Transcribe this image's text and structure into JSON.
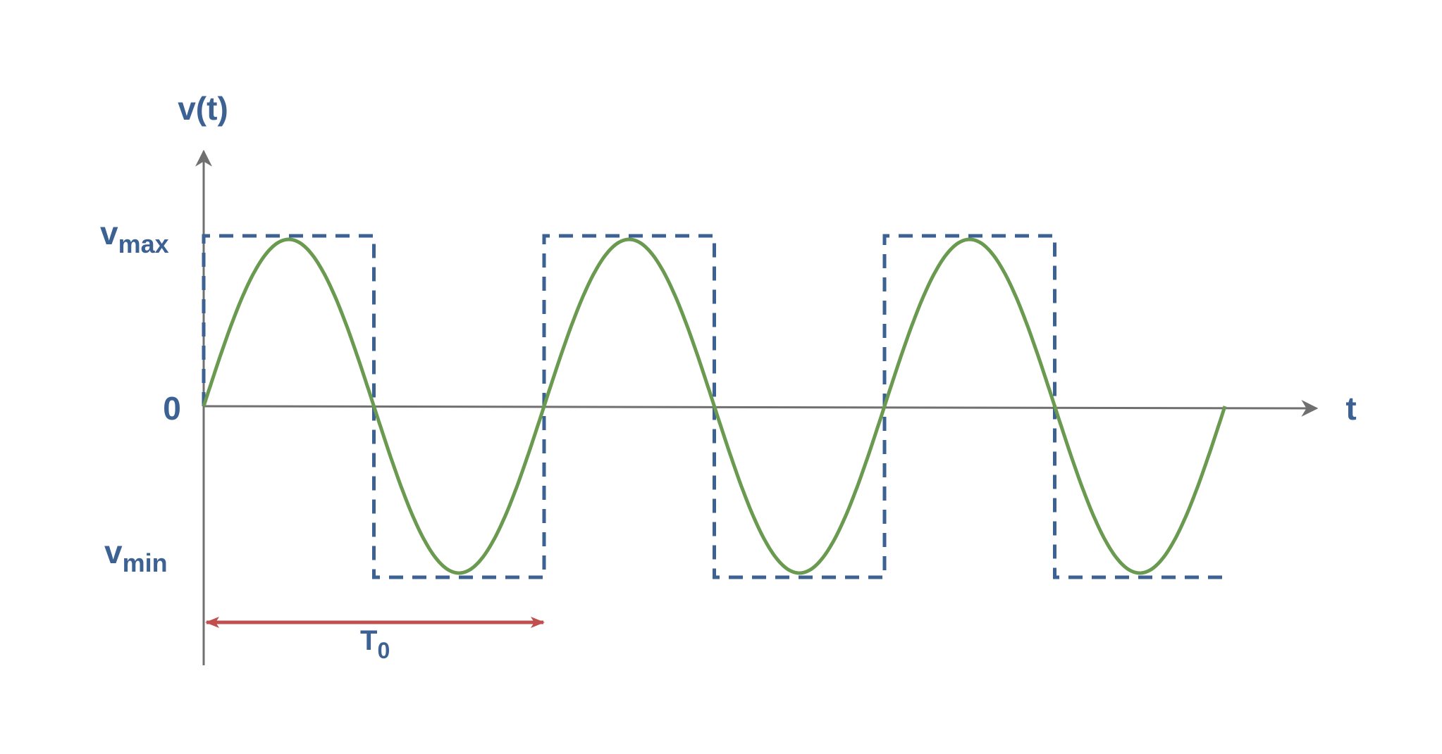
{
  "labels": {
    "y_axis": "v(t)",
    "x_axis": "t",
    "zero": "0",
    "vmax_base": "v",
    "vmax_sub": "max",
    "vmin_base": "v",
    "vmin_sub": "min",
    "period_base": "T",
    "period_sub": "0"
  },
  "waveform": {
    "sine_cycles": 3,
    "sine_color": "#6a9a50",
    "square_color": "#3c6193",
    "period_arrow_color": "#c0504d",
    "axis_color": "#707070",
    "label_color": "#3c6193"
  }
}
